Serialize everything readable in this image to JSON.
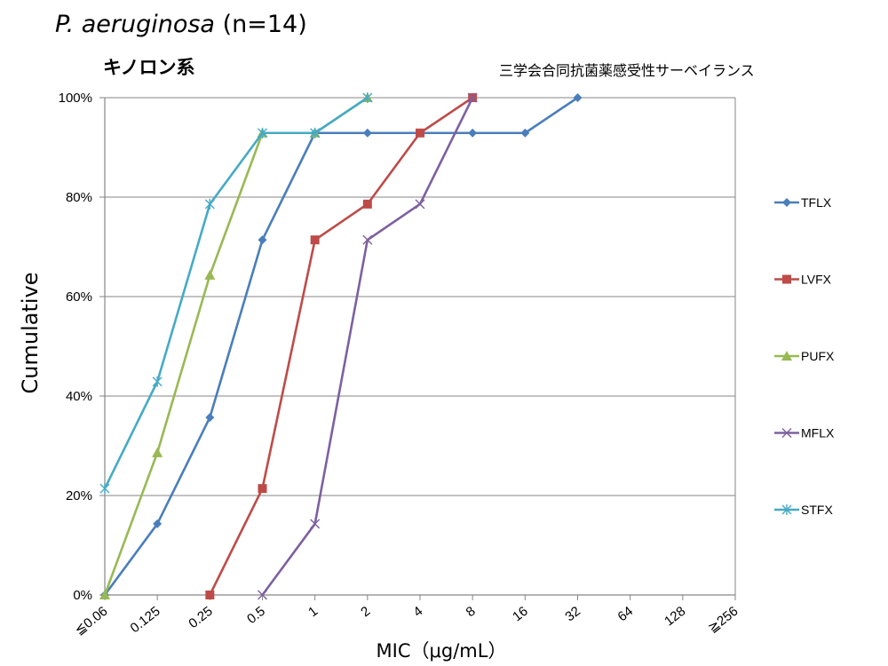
{
  "header": {
    "species": "P. aeruginosa",
    "count": " (n=14)",
    "drug_class": "キノロン系",
    "source": "三学会合同抗菌薬感受性サーベイランス"
  },
  "colors": {
    "TFLX": "#4a7ebb",
    "LVFX": "#be4b48",
    "PUFX": "#98b954",
    "MFLX": "#7d60a0",
    "STFX": "#46aac5"
  },
  "chart_data": {
    "type": "line",
    "categories": [
      "≦0.06",
      "0.125",
      "0.25",
      "0.5",
      "1",
      "2",
      "4",
      "8",
      "16",
      "32",
      "64",
      "128",
      "≧256"
    ],
    "ylabel": "Cumulative",
    "xlabel": "MIC（μg/mL）",
    "ylim": [
      0,
      100
    ],
    "yticks": [
      "0%",
      "20%",
      "40%",
      "60%",
      "80%",
      "100%"
    ],
    "grid": true,
    "legend_position": "right",
    "series": [
      {
        "name": "TFLX",
        "marker": "diamond",
        "values": [
          0,
          14.3,
          35.7,
          71.4,
          92.9,
          92.9,
          92.9,
          92.9,
          92.9,
          100,
          null,
          null,
          null
        ]
      },
      {
        "name": "LVFX",
        "marker": "square",
        "values": [
          null,
          null,
          0,
          21.4,
          71.4,
          78.6,
          92.9,
          100,
          null,
          null,
          null,
          null,
          null
        ]
      },
      {
        "name": "PUFX",
        "marker": "triangle",
        "values": [
          0,
          28.6,
          64.3,
          92.9,
          92.9,
          100,
          null,
          null,
          null,
          null,
          null,
          null,
          null
        ]
      },
      {
        "name": "MFLX",
        "marker": "x",
        "values": [
          null,
          null,
          null,
          0,
          14.3,
          71.4,
          78.6,
          100,
          null,
          null,
          null,
          null,
          null
        ]
      },
      {
        "name": "STFX",
        "marker": "star",
        "values": [
          21.4,
          42.9,
          78.6,
          92.9,
          92.9,
          100,
          null,
          null,
          null,
          null,
          null,
          null,
          null
        ]
      }
    ]
  }
}
